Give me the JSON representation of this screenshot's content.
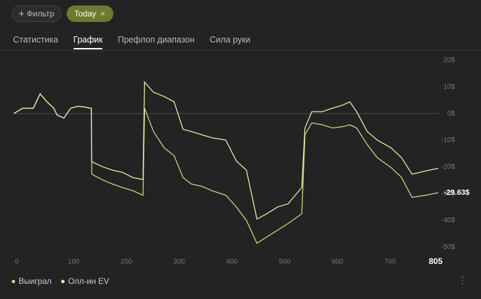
{
  "toolbar": {
    "filter": "Фильтр",
    "chip": "Today"
  },
  "tabs": [
    "Статистика",
    "График",
    "Префлоп диапазон",
    "Сила руки"
  ],
  "active_tab": 1,
  "chart_data": {
    "type": "line",
    "x": [
      0,
      17,
      37,
      50,
      63,
      76,
      82,
      95,
      108,
      121,
      134,
      145,
      147,
      148,
      167,
      187,
      206,
      226,
      245,
      248,
      265,
      285,
      304,
      321,
      337,
      356,
      376,
      402,
      422,
      441,
      461,
      480,
      500,
      520,
      546,
      552,
      565,
      585,
      604,
      624,
      637,
      650,
      670,
      689,
      715,
      735,
      755,
      781,
      805
    ],
    "series": [
      {
        "name": "Выиграл",
        "color": "#b9e07c",
        "values": [
          0,
          2,
          2,
          7.4,
          4.4,
          2,
          -0.5,
          -1.7,
          2,
          2.7,
          2.5,
          2,
          2,
          -22.7,
          -24.7,
          -26.4,
          -27.7,
          -28.9,
          -30.6,
          2,
          -6.7,
          -12.8,
          -15.8,
          -24,
          -26.4,
          -27.2,
          -28.9,
          -30.6,
          -35,
          -40,
          -48.6,
          -46.2,
          -43.7,
          -41.2,
          -37.5,
          -7.9,
          -3.5,
          -4.2,
          -5.4,
          -4.9,
          -4.2,
          -5.4,
          -11.6,
          -16.5,
          -20.2,
          -23.9,
          -31.4,
          -30.6,
          -29.63
        ]
      },
      {
        "name": "Олл-ин EV",
        "color": "#e6efa4",
        "values": [
          0,
          2,
          2,
          7.4,
          4.4,
          2,
          -0.5,
          -1.7,
          2,
          2.7,
          2.5,
          2,
          2,
          -18,
          -19.8,
          -21.2,
          -22,
          -24,
          -24.7,
          11.8,
          8,
          6.4,
          4.4,
          -5.9,
          -6.7,
          -7.9,
          -9.1,
          -9.9,
          -17.8,
          -21.2,
          -39.5,
          -37.5,
          -35,
          -33.8,
          -27.7,
          -5.4,
          0.7,
          0.7,
          2,
          3.2,
          4.4,
          0.7,
          -6.7,
          -9.9,
          -12.8,
          -16.5,
          -22.7,
          -21.5,
          -20.5
        ]
      }
    ],
    "annotation": "-29.63$",
    "xlim": [
      0,
      805
    ],
    "xticks": [
      0,
      100,
      200,
      300,
      400,
      500,
      600,
      700,
      805
    ],
    "ylim": [
      -52,
      22
    ],
    "yticks": [
      {
        "value": 20,
        "label": "20$"
      },
      {
        "value": 10,
        "label": "10$"
      },
      {
        "value": 0,
        "label": "0$"
      },
      {
        "value": -10,
        "label": "-10$"
      },
      {
        "value": -20,
        "label": "-20$"
      },
      {
        "value": -30,
        "label": "-30$"
      },
      {
        "value": -40,
        "label": "-40$"
      },
      {
        "value": -50,
        "label": "-50$"
      }
    ],
    "zero_line": true
  }
}
